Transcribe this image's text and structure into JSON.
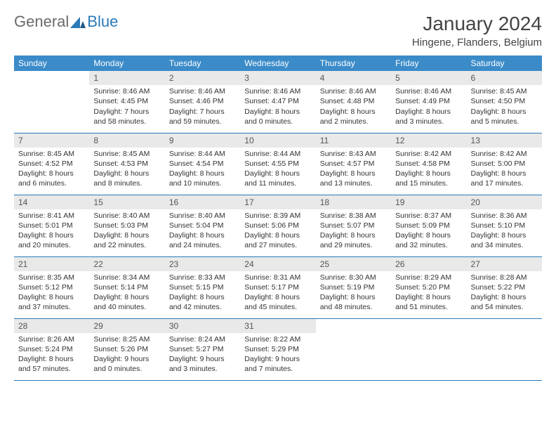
{
  "logo": {
    "general": "General",
    "blue": "Blue"
  },
  "title": "January 2024",
  "location": "Hingene, Flanders, Belgium",
  "colors": {
    "header_bg": "#3b8bc9",
    "header_text": "#ffffff",
    "daynum_bg": "#e9e9e9",
    "border": "#2a7ab9",
    "logo_gray": "#6a6a6a",
    "logo_blue": "#2a7ab9"
  },
  "day_headers": [
    "Sunday",
    "Monday",
    "Tuesday",
    "Wednesday",
    "Thursday",
    "Friday",
    "Saturday"
  ],
  "weeks": [
    [
      null,
      {
        "n": "1",
        "sr": "8:46 AM",
        "ss": "4:45 PM",
        "dl": "7 hours and 58 minutes."
      },
      {
        "n": "2",
        "sr": "8:46 AM",
        "ss": "4:46 PM",
        "dl": "7 hours and 59 minutes."
      },
      {
        "n": "3",
        "sr": "8:46 AM",
        "ss": "4:47 PM",
        "dl": "8 hours and 0 minutes."
      },
      {
        "n": "4",
        "sr": "8:46 AM",
        "ss": "4:48 PM",
        "dl": "8 hours and 2 minutes."
      },
      {
        "n": "5",
        "sr": "8:46 AM",
        "ss": "4:49 PM",
        "dl": "8 hours and 3 minutes."
      },
      {
        "n": "6",
        "sr": "8:45 AM",
        "ss": "4:50 PM",
        "dl": "8 hours and 5 minutes."
      }
    ],
    [
      {
        "n": "7",
        "sr": "8:45 AM",
        "ss": "4:52 PM",
        "dl": "8 hours and 6 minutes."
      },
      {
        "n": "8",
        "sr": "8:45 AM",
        "ss": "4:53 PM",
        "dl": "8 hours and 8 minutes."
      },
      {
        "n": "9",
        "sr": "8:44 AM",
        "ss": "4:54 PM",
        "dl": "8 hours and 10 minutes."
      },
      {
        "n": "10",
        "sr": "8:44 AM",
        "ss": "4:55 PM",
        "dl": "8 hours and 11 minutes."
      },
      {
        "n": "11",
        "sr": "8:43 AM",
        "ss": "4:57 PM",
        "dl": "8 hours and 13 minutes."
      },
      {
        "n": "12",
        "sr": "8:42 AM",
        "ss": "4:58 PM",
        "dl": "8 hours and 15 minutes."
      },
      {
        "n": "13",
        "sr": "8:42 AM",
        "ss": "5:00 PM",
        "dl": "8 hours and 17 minutes."
      }
    ],
    [
      {
        "n": "14",
        "sr": "8:41 AM",
        "ss": "5:01 PM",
        "dl": "8 hours and 20 minutes."
      },
      {
        "n": "15",
        "sr": "8:40 AM",
        "ss": "5:03 PM",
        "dl": "8 hours and 22 minutes."
      },
      {
        "n": "16",
        "sr": "8:40 AM",
        "ss": "5:04 PM",
        "dl": "8 hours and 24 minutes."
      },
      {
        "n": "17",
        "sr": "8:39 AM",
        "ss": "5:06 PM",
        "dl": "8 hours and 27 minutes."
      },
      {
        "n": "18",
        "sr": "8:38 AM",
        "ss": "5:07 PM",
        "dl": "8 hours and 29 minutes."
      },
      {
        "n": "19",
        "sr": "8:37 AM",
        "ss": "5:09 PM",
        "dl": "8 hours and 32 minutes."
      },
      {
        "n": "20",
        "sr": "8:36 AM",
        "ss": "5:10 PM",
        "dl": "8 hours and 34 minutes."
      }
    ],
    [
      {
        "n": "21",
        "sr": "8:35 AM",
        "ss": "5:12 PM",
        "dl": "8 hours and 37 minutes."
      },
      {
        "n": "22",
        "sr": "8:34 AM",
        "ss": "5:14 PM",
        "dl": "8 hours and 40 minutes."
      },
      {
        "n": "23",
        "sr": "8:33 AM",
        "ss": "5:15 PM",
        "dl": "8 hours and 42 minutes."
      },
      {
        "n": "24",
        "sr": "8:31 AM",
        "ss": "5:17 PM",
        "dl": "8 hours and 45 minutes."
      },
      {
        "n": "25",
        "sr": "8:30 AM",
        "ss": "5:19 PM",
        "dl": "8 hours and 48 minutes."
      },
      {
        "n": "26",
        "sr": "8:29 AM",
        "ss": "5:20 PM",
        "dl": "8 hours and 51 minutes."
      },
      {
        "n": "27",
        "sr": "8:28 AM",
        "ss": "5:22 PM",
        "dl": "8 hours and 54 minutes."
      }
    ],
    [
      {
        "n": "28",
        "sr": "8:26 AM",
        "ss": "5:24 PM",
        "dl": "8 hours and 57 minutes."
      },
      {
        "n": "29",
        "sr": "8:25 AM",
        "ss": "5:26 PM",
        "dl": "9 hours and 0 minutes."
      },
      {
        "n": "30",
        "sr": "8:24 AM",
        "ss": "5:27 PM",
        "dl": "9 hours and 3 minutes."
      },
      {
        "n": "31",
        "sr": "8:22 AM",
        "ss": "5:29 PM",
        "dl": "9 hours and 7 minutes."
      },
      null,
      null,
      null
    ]
  ],
  "labels": {
    "sunrise": "Sunrise:",
    "sunset": "Sunset:",
    "daylight": "Daylight:"
  }
}
